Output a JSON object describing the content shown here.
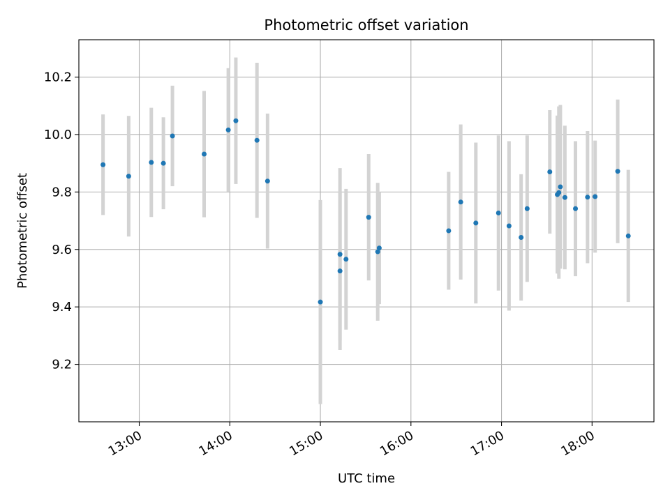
{
  "chart_data": {
    "type": "scatter",
    "title": "Photometric offset variation",
    "xlabel": "UTC time",
    "ylabel": "Photometric offset",
    "xlim": [
      "12:20",
      "18:41"
    ],
    "ylim": [
      9.0,
      10.33
    ],
    "grid": true,
    "x_ticks": [
      "13:00",
      "14:00",
      "15:00",
      "16:00",
      "17:00",
      "18:00"
    ],
    "y_ticks": [
      9.2,
      9.4,
      9.6,
      9.8,
      10.0,
      10.2
    ],
    "y_tick_labels": [
      "9.2",
      "9.4",
      "9.6",
      "9.8",
      "10.0",
      "10.2"
    ],
    "colors": {
      "point": "#1f77b4",
      "errorbar": "#d3d3d3",
      "grid": "#b0b0b0"
    },
    "series": [
      {
        "x": [
          "12:36",
          "12:53",
          "13:08",
          "13:16",
          "13:22",
          "13:43",
          "13:59",
          "14:04",
          "14:18",
          "14:25",
          "15:00",
          "15:13",
          "15:13",
          "15:17",
          "15:32",
          "15:38",
          "15:39",
          "16:25",
          "16:33",
          "16:43",
          "16:58",
          "17:05",
          "17:13",
          "17:17",
          "17:32",
          "17:37",
          "17:38",
          "17:39",
          "17:42",
          "17:49",
          "17:57",
          "18:02",
          "18:17",
          "18:24"
        ],
        "y": [
          9.895,
          9.855,
          9.903,
          9.9,
          9.995,
          9.932,
          10.016,
          10.048,
          9.98,
          9.838,
          9.417,
          9.583,
          9.525,
          9.566,
          9.712,
          9.592,
          9.605,
          9.665,
          9.765,
          9.692,
          9.727,
          9.682,
          9.642,
          9.742,
          9.87,
          9.791,
          9.798,
          9.818,
          9.781,
          9.742,
          9.782,
          9.784,
          9.872,
          9.647
        ],
        "yerr": [
          0.175,
          0.21,
          0.19,
          0.16,
          0.175,
          0.22,
          0.215,
          0.22,
          0.27,
          0.235,
          0.355,
          0.3,
          0.275,
          0.245,
          0.22,
          0.24,
          0.195,
          0.205,
          0.27,
          0.28,
          0.27,
          0.295,
          0.22,
          0.255,
          0.215,
          0.275,
          0.3,
          0.285,
          0.25,
          0.235,
          0.23,
          0.195,
          0.25,
          0.23
        ]
      }
    ]
  }
}
